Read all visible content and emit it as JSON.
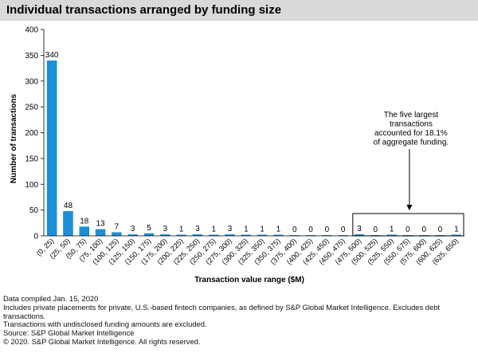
{
  "title": "Individual transactions arranged by funding size",
  "chart_data": {
    "type": "bar",
    "ylabel": "Number of transactions",
    "xlabel": "Transaction value range ($M)",
    "ylim": [
      0,
      400
    ],
    "yticks": [
      0,
      50,
      100,
      150,
      200,
      250,
      300,
      350,
      400
    ],
    "grid": false,
    "bar_color": "#1c8fd6",
    "categories": [
      "(0, 25)",
      "(25, 50)",
      "(50, 75)",
      "(75, 100)",
      "(100, 125)",
      "(125, 150)",
      "(150, 175)",
      "(175, 200)",
      "(200, 225)",
      "(225, 250)",
      "(250, 275)",
      "(275, 300)",
      "(300, 325)",
      "(325, 350)",
      "(350, 375)",
      "(375, 400)",
      "(400, 425)",
      "(425, 450)",
      "(450, 475)",
      "(475, 500)",
      "(500, 525)",
      "(525, 550)",
      "(550, 575)",
      "(575, 600)",
      "(600, 625)",
      "(625, 650)"
    ],
    "values": [
      340,
      48,
      18,
      13,
      7,
      3,
      5,
      3,
      1,
      3,
      1,
      3,
      1,
      1,
      1,
      0,
      0,
      0,
      0,
      3,
      0,
      1,
      0,
      0,
      0,
      1
    ],
    "annotation": {
      "lines": [
        "The five largest",
        "transactions",
        "accounted for 18.1%",
        "of aggregate funding."
      ]
    }
  },
  "footer": [
    "Data compiled Jan. 15, 2020",
    "Includes private placements for private, U.S.-based fintech companies, as defined by S&P Global Market Intelligence. Excludes debt transactions.",
    "Transactions with undisclosed funding amounts are excluded.",
    "Source: S&P Global Market Intelligence",
    "© 2020. S&P Global Market Intelligence. All rights reserved."
  ]
}
